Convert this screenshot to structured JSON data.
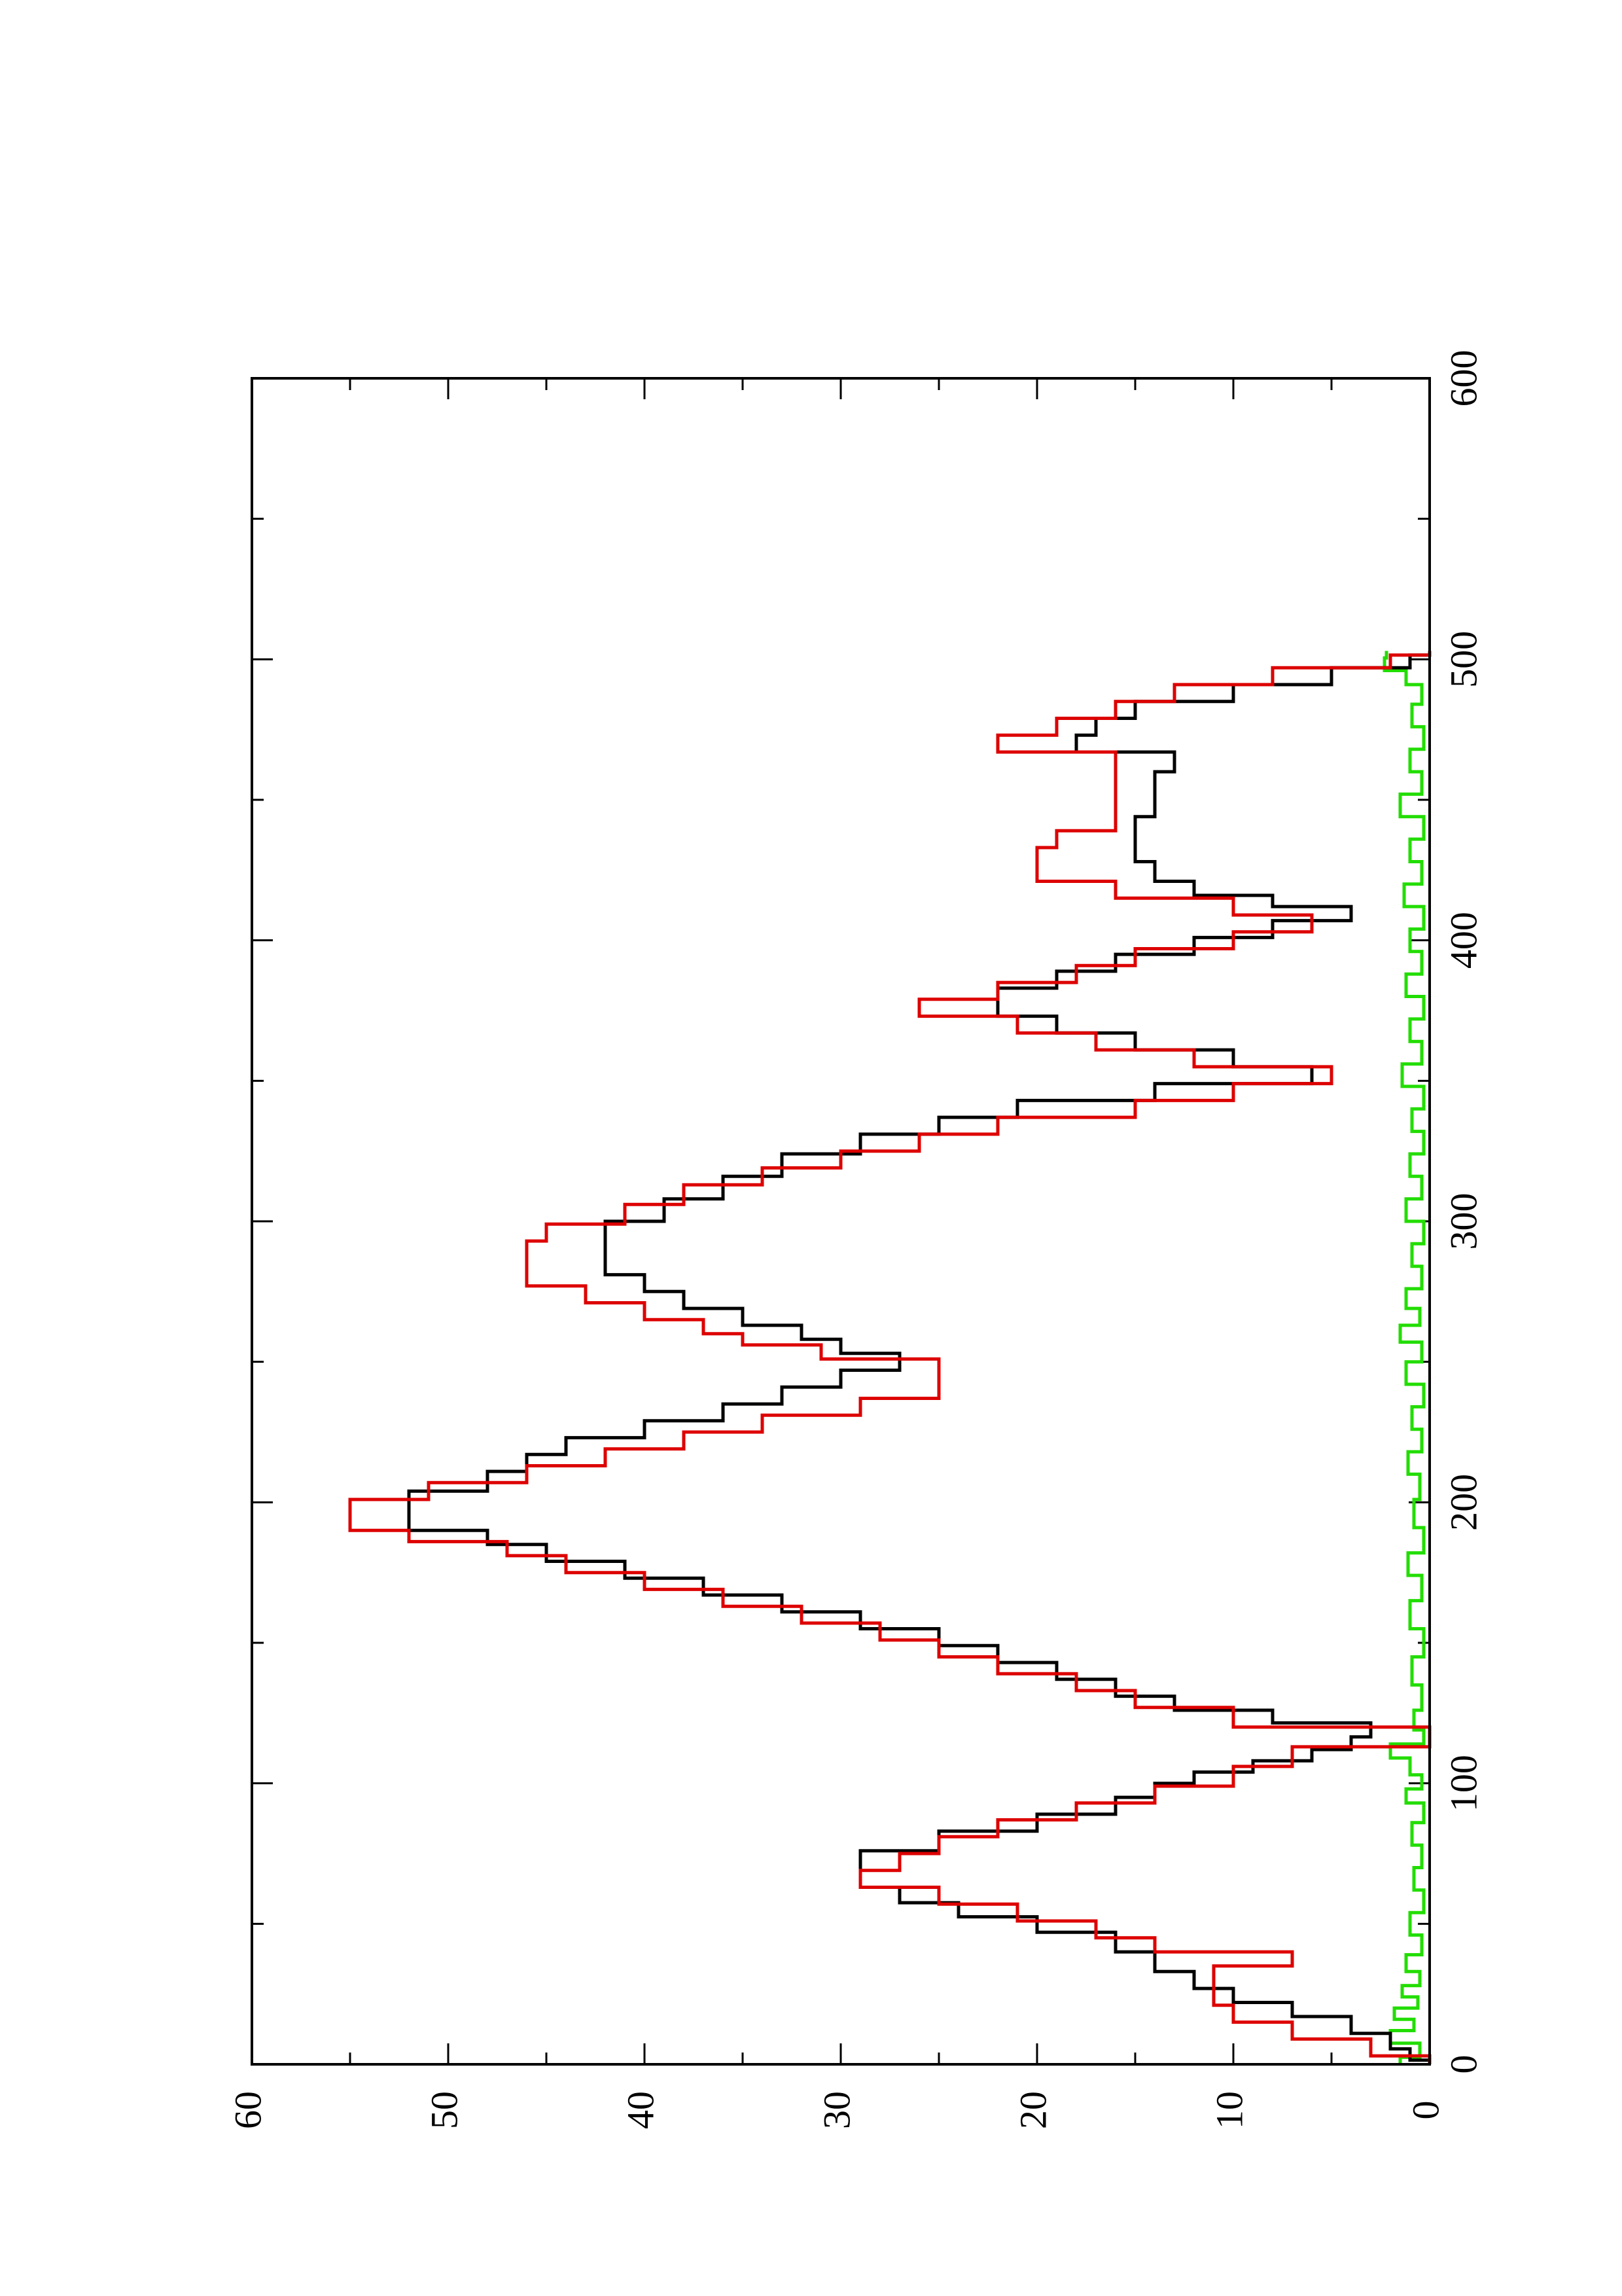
{
  "chart_data": {
    "type": "line",
    "orientation": "rotated-90-ccw",
    "title": "",
    "xlabel": "",
    "ylabel": "",
    "xlim": [
      0,
      600
    ],
    "ylim": [
      0,
      60
    ],
    "x_ticks": [
      0,
      100,
      200,
      300,
      400,
      500,
      600
    ],
    "x_tick_labels": [
      "0",
      "100",
      "200",
      "300",
      "400",
      "500",
      "600"
    ],
    "y_ticks": [
      0,
      10,
      20,
      30,
      40,
      50,
      60
    ],
    "y_tick_labels": [
      "0",
      "10",
      "20",
      "30",
      "40",
      "50",
      "60"
    ],
    "grid": false,
    "legend": "none",
    "series": [
      {
        "color": "#000000",
        "points": [
          [
            0,
            0
          ],
          [
            3,
            1
          ],
          [
            8,
            2
          ],
          [
            14,
            4
          ],
          [
            20,
            7
          ],
          [
            24,
            10
          ],
          [
            30,
            12
          ],
          [
            36,
            14
          ],
          [
            44,
            16
          ],
          [
            50,
            20
          ],
          [
            55,
            24
          ],
          [
            60,
            27
          ],
          [
            66,
            29
          ],
          [
            72,
            29
          ],
          [
            80,
            25
          ],
          [
            86,
            20
          ],
          [
            92,
            16
          ],
          [
            98,
            14
          ],
          [
            102,
            12
          ],
          [
            106,
            9
          ],
          [
            110,
            6
          ],
          [
            114,
            4
          ],
          [
            119,
            3
          ],
          [
            124,
            8
          ],
          [
            128,
            13
          ],
          [
            134,
            16
          ],
          [
            140,
            19
          ],
          [
            146,
            22
          ],
          [
            152,
            25
          ],
          [
            158,
            29
          ],
          [
            164,
            33
          ],
          [
            170,
            37
          ],
          [
            176,
            41
          ],
          [
            182,
            45
          ],
          [
            188,
            48
          ],
          [
            192,
            52
          ],
          [
            200,
            52
          ],
          [
            208,
            48
          ],
          [
            214,
            46
          ],
          [
            220,
            44
          ],
          [
            226,
            40
          ],
          [
            232,
            36
          ],
          [
            238,
            33
          ],
          [
            244,
            30
          ],
          [
            250,
            27
          ],
          [
            256,
            30
          ],
          [
            260,
            32
          ],
          [
            266,
            35
          ],
          [
            272,
            38
          ],
          [
            278,
            40
          ],
          [
            284,
            42
          ],
          [
            296,
            42
          ],
          [
            304,
            39
          ],
          [
            312,
            36
          ],
          [
            320,
            33
          ],
          [
            328,
            29
          ],
          [
            334,
            25
          ],
          [
            340,
            21
          ],
          [
            346,
            14
          ],
          [
            352,
            6
          ],
          [
            358,
            10
          ],
          [
            364,
            15
          ],
          [
            370,
            19
          ],
          [
            376,
            22
          ],
          [
            380,
            22
          ],
          [
            386,
            19
          ],
          [
            392,
            16
          ],
          [
            398,
            12
          ],
          [
            404,
            8
          ],
          [
            410,
            4
          ],
          [
            414,
            8
          ],
          [
            418,
            12
          ],
          [
            424,
            14
          ],
          [
            432,
            15
          ],
          [
            440,
            15
          ],
          [
            448,
            14
          ],
          [
            456,
            14
          ],
          [
            464,
            13
          ],
          [
            470,
            18
          ],
          [
            476,
            17
          ],
          [
            482,
            15
          ],
          [
            488,
            10
          ],
          [
            494,
            5
          ],
          [
            500,
            1
          ],
          [
            503,
            0
          ]
        ]
      },
      {
        "color": "#dd0000",
        "points": [
          [
            0,
            0
          ],
          [
            6,
            3
          ],
          [
            12,
            7
          ],
          [
            18,
            10
          ],
          [
            24,
            11
          ],
          [
            32,
            11
          ],
          [
            38,
            7
          ],
          [
            42,
            14
          ],
          [
            48,
            17
          ],
          [
            54,
            21
          ],
          [
            60,
            25
          ],
          [
            66,
            29
          ],
          [
            72,
            27
          ],
          [
            78,
            25
          ],
          [
            84,
            22
          ],
          [
            90,
            18
          ],
          [
            96,
            14
          ],
          [
            102,
            10
          ],
          [
            110,
            7
          ],
          [
            116,
            0
          ],
          [
            124,
            10
          ],
          [
            130,
            15
          ],
          [
            136,
            18
          ],
          [
            142,
            22
          ],
          [
            148,
            25
          ],
          [
            154,
            28
          ],
          [
            160,
            32
          ],
          [
            166,
            36
          ],
          [
            172,
            40
          ],
          [
            178,
            44
          ],
          [
            184,
            47
          ],
          [
            188,
            52
          ],
          [
            192,
            55
          ],
          [
            198,
            55
          ],
          [
            204,
            51
          ],
          [
            210,
            46
          ],
          [
            216,
            42
          ],
          [
            222,
            38
          ],
          [
            228,
            34
          ],
          [
            234,
            29
          ],
          [
            240,
            25
          ],
          [
            248,
            25
          ],
          [
            254,
            31
          ],
          [
            258,
            35
          ],
          [
            262,
            37
          ],
          [
            268,
            40
          ],
          [
            274,
            43
          ],
          [
            280,
            46
          ],
          [
            290,
            46
          ],
          [
            296,
            45
          ],
          [
            302,
            41
          ],
          [
            310,
            38
          ],
          [
            316,
            34
          ],
          [
            322,
            30
          ],
          [
            328,
            26
          ],
          [
            334,
            22
          ],
          [
            340,
            15
          ],
          [
            346,
            10
          ],
          [
            352,
            5
          ],
          [
            358,
            12
          ],
          [
            364,
            17
          ],
          [
            370,
            21
          ],
          [
            376,
            26
          ],
          [
            382,
            22
          ],
          [
            388,
            18
          ],
          [
            394,
            15
          ],
          [
            400,
            10
          ],
          [
            406,
            6
          ],
          [
            412,
            10
          ],
          [
            418,
            16
          ],
          [
            424,
            20
          ],
          [
            430,
            20
          ],
          [
            436,
            19
          ],
          [
            442,
            16
          ],
          [
            450,
            16
          ],
          [
            458,
            16
          ],
          [
            464,
            16
          ],
          [
            470,
            22
          ],
          [
            476,
            19
          ],
          [
            482,
            16
          ],
          [
            488,
            13
          ],
          [
            494,
            8
          ],
          [
            500,
            2
          ],
          [
            503,
            0
          ]
        ]
      },
      {
        "color": "#22dd00",
        "points": [
          [
            0,
            1.5
          ],
          [
            5,
            0.5
          ],
          [
            10,
            2
          ],
          [
            14,
            0.8
          ],
          [
            18,
            1.8
          ],
          [
            22,
            0.6
          ],
          [
            26,
            1.4
          ],
          [
            30,
            0.5
          ],
          [
            36,
            1.2
          ],
          [
            42,
            0.4
          ],
          [
            50,
            1.0
          ],
          [
            58,
            0.3
          ],
          [
            66,
            0.8
          ],
          [
            74,
            0.4
          ],
          [
            82,
            0.9
          ],
          [
            90,
            0.3
          ],
          [
            96,
            1.2
          ],
          [
            100,
            0.4
          ],
          [
            106,
            1.0
          ],
          [
            112,
            2.0
          ],
          [
            116,
            0.3
          ],
          [
            122,
            0.8
          ],
          [
            130,
            0.4
          ],
          [
            140,
            0.9
          ],
          [
            150,
            0.3
          ],
          [
            160,
            1.0
          ],
          [
            170,
            0.4
          ],
          [
            178,
            1.1
          ],
          [
            186,
            0.3
          ],
          [
            196,
            0.8
          ],
          [
            206,
            0.5
          ],
          [
            214,
            1.1
          ],
          [
            222,
            0.4
          ],
          [
            230,
            0.9
          ],
          [
            238,
            0.3
          ],
          [
            246,
            1.2
          ],
          [
            254,
            0.4
          ],
          [
            260,
            1.5
          ],
          [
            266,
            0.5
          ],
          [
            272,
            1.2
          ],
          [
            280,
            0.4
          ],
          [
            288,
            0.9
          ],
          [
            296,
            0.3
          ],
          [
            304,
            1.2
          ],
          [
            312,
            0.4
          ],
          [
            320,
            1.0
          ],
          [
            328,
            0.3
          ],
          [
            336,
            0.9
          ],
          [
            344,
            0.3
          ],
          [
            352,
            1.4
          ],
          [
            360,
            0.4
          ],
          [
            368,
            1.0
          ],
          [
            376,
            0.3
          ],
          [
            384,
            1.2
          ],
          [
            392,
            0.4
          ],
          [
            400,
            1.0
          ],
          [
            408,
            0.3
          ],
          [
            416,
            1.3
          ],
          [
            424,
            0.4
          ],
          [
            432,
            1.0
          ],
          [
            440,
            0.3
          ],
          [
            448,
            1.5
          ],
          [
            456,
            0.4
          ],
          [
            464,
            1.0
          ],
          [
            472,
            0.3
          ],
          [
            480,
            0.9
          ],
          [
            488,
            0.4
          ],
          [
            494,
            1.2
          ],
          [
            498,
            2.3
          ],
          [
            503,
            2.2
          ]
        ]
      }
    ]
  }
}
